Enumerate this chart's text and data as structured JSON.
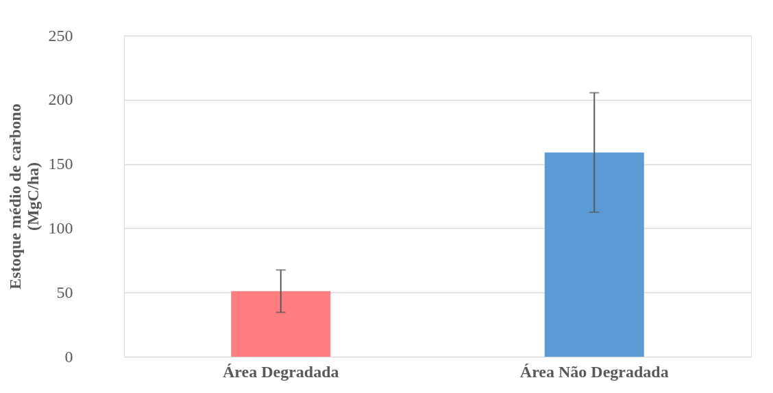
{
  "chart_data": {
    "type": "bar",
    "categories": [
      "Área Degradada",
      "Área Não Degradada"
    ],
    "values": [
      51,
      159
    ],
    "colors": [
      "#ff7c80",
      "#5b9bd5"
    ],
    "errors": [
      16.5,
      46.5
    ],
    "ylabel": "Estoque médio de carbono\n(MgC/ha)",
    "ylim": [
      0,
      250
    ],
    "yticks": [
      0,
      50,
      100,
      150,
      200,
      250
    ],
    "grid": "y"
  }
}
